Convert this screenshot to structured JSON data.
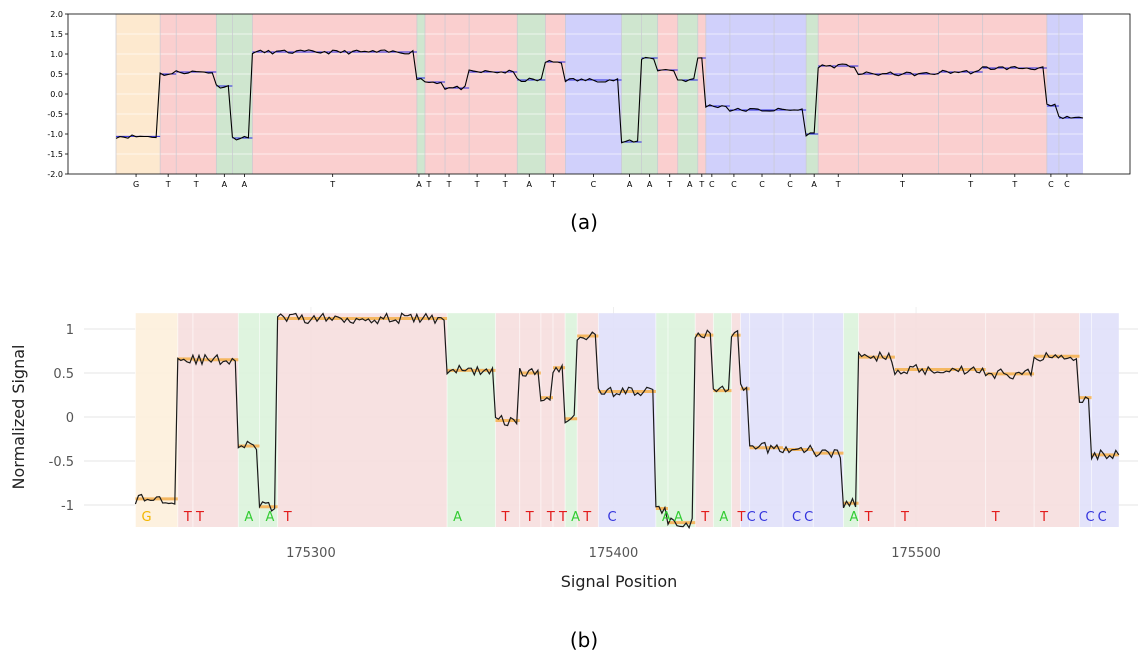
{
  "figure": {
    "caption_a": "(a)",
    "caption_b": "(b)"
  },
  "chart_data": [
    {
      "type": "line",
      "panel": "a",
      "ylim": [
        -2.0,
        2.0
      ],
      "ytick_labels": [
        "2.0",
        "1.5",
        "1.0",
        "0.5",
        "0.0",
        "-0.5",
        "-1.0",
        "-1.5",
        "-2.0"
      ],
      "grid": true,
      "base_colors": {
        "A": "#cfe6cf",
        "C": "#d0d0fb",
        "G": "#fde9cf",
        "T": "#facfcf"
      },
      "x_range": [
        0,
        241
      ],
      "segments": [
        {
          "base": "G",
          "start": 0,
          "end": 11,
          "level": -1.06
        },
        {
          "base": "T",
          "start": 11,
          "end": 15,
          "level": 0.5
        },
        {
          "base": "T",
          "start": 15,
          "end": 25,
          "level": 0.55
        },
        {
          "base": "A",
          "start": 25,
          "end": 29,
          "level": 0.2
        },
        {
          "base": "A",
          "start": 29,
          "end": 34,
          "level": -1.1
        },
        {
          "base": "T",
          "start": 34,
          "end": 75,
          "level": 1.05
        },
        {
          "base": "A",
          "start": 75,
          "end": 77,
          "level": 0.4
        },
        {
          "base": "T",
          "start": 77,
          "end": 82,
          "level": 0.3
        },
        {
          "base": "T",
          "start": 82,
          "end": 88,
          "level": 0.15
        },
        {
          "base": "T",
          "start": 88,
          "end": 100,
          "level": 0.55
        },
        {
          "base": "A",
          "start": 100,
          "end": 107,
          "level": 0.35
        },
        {
          "base": "T",
          "start": 107,
          "end": 112,
          "level": 0.8
        },
        {
          "base": "C",
          "start": 112,
          "end": 126,
          "level": 0.35
        },
        {
          "base": "A",
          "start": 126,
          "end": 131,
          "level": -1.2
        },
        {
          "base": "A",
          "start": 131,
          "end": 135,
          "level": 0.9
        },
        {
          "base": "T",
          "start": 135,
          "end": 140,
          "level": 0.6
        },
        {
          "base": "A",
          "start": 140,
          "end": 145,
          "level": 0.35
        },
        {
          "base": "T",
          "start": 145,
          "end": 147,
          "level": 0.9
        },
        {
          "base": "C",
          "start": 147,
          "end": 153,
          "level": -0.3
        },
        {
          "base": "C",
          "start": 153,
          "end": 164,
          "level": -0.4
        },
        {
          "base": "C",
          "start": 164,
          "end": 172,
          "level": -0.4
        },
        {
          "base": "A",
          "start": 172,
          "end": 175,
          "level": -1.0
        },
        {
          "base": "T",
          "start": 175,
          "end": 185,
          "level": 0.7
        },
        {
          "base": "T",
          "start": 185,
          "end": 205,
          "level": 0.5
        },
        {
          "base": "T",
          "start": 205,
          "end": 216,
          "level": 0.55
        },
        {
          "base": "T",
          "start": 216,
          "end": 232,
          "level": 0.65
        },
        {
          "base": "C",
          "start": 232,
          "end": 235,
          "level": -0.3
        },
        {
          "base": "C",
          "start": 235,
          "end": 241,
          "level": -0.6
        }
      ],
      "x_tick_labels": [
        {
          "x": 5,
          "text": "G"
        },
        {
          "x": 13,
          "text": "T"
        },
        {
          "x": 20,
          "text": "T"
        },
        {
          "x": 27,
          "text": "A"
        },
        {
          "x": 32,
          "text": "A"
        },
        {
          "x": 54,
          "text": "T"
        },
        {
          "x": 75.5,
          "text": "A"
        },
        {
          "x": 78,
          "text": "T"
        },
        {
          "x": 83,
          "text": "T"
        },
        {
          "x": 90,
          "text": "T"
        },
        {
          "x": 97,
          "text": "T"
        },
        {
          "x": 103,
          "text": "A"
        },
        {
          "x": 109,
          "text": "T"
        },
        {
          "x": 119,
          "text": "C"
        },
        {
          "x": 128,
          "text": "A"
        },
        {
          "x": 133,
          "text": "A"
        },
        {
          "x": 138,
          "text": "T"
        },
        {
          "x": 143,
          "text": "A"
        },
        {
          "x": 146,
          "text": "T"
        },
        {
          "x": 148.5,
          "text": "C"
        },
        {
          "x": 154,
          "text": "C"
        },
        {
          "x": 161,
          "text": "C"
        },
        {
          "x": 168,
          "text": "C"
        },
        {
          "x": 174,
          "text": "A"
        },
        {
          "x": 180,
          "text": "T"
        },
        {
          "x": 196,
          "text": "T"
        },
        {
          "x": 213,
          "text": "T"
        },
        {
          "x": 224,
          "text": "T"
        },
        {
          "x": 233,
          "text": "C"
        },
        {
          "x": 237,
          "text": "C"
        }
      ]
    },
    {
      "type": "line",
      "panel": "b",
      "xlabel": "Signal Position",
      "ylabel": "Normalized Signal",
      "xlim": [
        175225,
        175575
      ],
      "ylim": [
        -1.25,
        1.25
      ],
      "xticks": [
        175300,
        175400,
        175500
      ],
      "xtick_labels": [
        "175300",
        "175400",
        "175500"
      ],
      "yticks": [
        1,
        0.5,
        0,
        -0.5,
        -1
      ],
      "ytick_labels": [
        "1",
        "0.5",
        "0",
        "-0.5",
        "-1"
      ],
      "grid": true,
      "base_colors": {
        "A": "#dcf3dc",
        "C": "#e0e0fa",
        "G": "#fdf0dc",
        "T": "#f6dede"
      },
      "base_text_colors": {
        "A": "#33cc33",
        "C": "#3333dd",
        "G": "#f2b600",
        "T": "#e21b1b"
      },
      "segments": [
        {
          "base": "G",
          "start": 175242,
          "end": 175256,
          "level": -0.93
        },
        {
          "base": "T",
          "start": 175256,
          "end": 175261,
          "level": 0.66
        },
        {
          "base": "T",
          "start": 175261,
          "end": 175276,
          "level": 0.65
        },
        {
          "base": "A",
          "start": 175276,
          "end": 175283,
          "level": -0.33
        },
        {
          "base": "A",
          "start": 175283,
          "end": 175289,
          "level": -1.02
        },
        {
          "base": "T",
          "start": 175289,
          "end": 175345,
          "level": 1.12
        },
        {
          "base": "A",
          "start": 175345,
          "end": 175361,
          "level": 0.53
        },
        {
          "base": "T",
          "start": 175361,
          "end": 175369,
          "level": -0.04
        },
        {
          "base": "T",
          "start": 175369,
          "end": 175376,
          "level": 0.5
        },
        {
          "base": "T",
          "start": 175376,
          "end": 175380,
          "level": 0.22
        },
        {
          "base": "T",
          "start": 175380,
          "end": 175384,
          "level": 0.56
        },
        {
          "base": "A",
          "start": 175384,
          "end": 175388,
          "level": -0.02
        },
        {
          "base": "T",
          "start": 175388,
          "end": 175395,
          "level": 0.92
        },
        {
          "base": "C",
          "start": 175395,
          "end": 175414,
          "level": 0.29
        },
        {
          "base": "A",
          "start": 175414,
          "end": 175418,
          "level": -1.04
        },
        {
          "base": "A",
          "start": 175418,
          "end": 175427,
          "level": -1.2
        },
        {
          "base": "T",
          "start": 175427,
          "end": 175433,
          "level": 0.93
        },
        {
          "base": "A",
          "start": 175433,
          "end": 175439,
          "level": 0.3
        },
        {
          "base": "T",
          "start": 175439,
          "end": 175442,
          "level": 0.93
        },
        {
          "base": "C",
          "start": 175442,
          "end": 175445,
          "level": 0.32
        },
        {
          "base": "C",
          "start": 175445,
          "end": 175456,
          "level": -0.35
        },
        {
          "base": "C",
          "start": 175456,
          "end": 175466,
          "level": -0.37
        },
        {
          "base": "C",
          "start": 175466,
          "end": 175476,
          "level": -0.41
        },
        {
          "base": "A",
          "start": 175476,
          "end": 175481,
          "level": -0.98
        },
        {
          "base": "T",
          "start": 175481,
          "end": 175493,
          "level": 0.68
        },
        {
          "base": "T",
          "start": 175493,
          "end": 175523,
          "level": 0.54
        },
        {
          "base": "T",
          "start": 175523,
          "end": 175539,
          "level": 0.49
        },
        {
          "base": "T",
          "start": 175539,
          "end": 175554,
          "level": 0.69
        },
        {
          "base": "C",
          "start": 175554,
          "end": 175558,
          "level": 0.22
        },
        {
          "base": "C",
          "start": 175558,
          "end": 175567,
          "level": -0.43
        }
      ],
      "base_labels": [
        {
          "x": 175244,
          "text": "G"
        },
        {
          "x": 175258,
          "text": "T"
        },
        {
          "x": 175262,
          "text": "T"
        },
        {
          "x": 175278,
          "text": "A"
        },
        {
          "x": 175285,
          "text": "A"
        },
        {
          "x": 175291,
          "text": "T"
        },
        {
          "x": 175347,
          "text": "A"
        },
        {
          "x": 175363,
          "text": "T"
        },
        {
          "x": 175371,
          "text": "T"
        },
        {
          "x": 175378,
          "text": "T"
        },
        {
          "x": 175382,
          "text": "T"
        },
        {
          "x": 175386,
          "text": "A"
        },
        {
          "x": 175390,
          "text": "T"
        },
        {
          "x": 175398,
          "text": "C"
        },
        {
          "x": 175416,
          "text": "A"
        },
        {
          "x": 175420,
          "text": "A"
        },
        {
          "x": 175429,
          "text": "T"
        },
        {
          "x": 175435,
          "text": "A"
        },
        {
          "x": 175441,
          "text": "T"
        },
        {
          "x": 175444,
          "text": "C"
        },
        {
          "x": 175448,
          "text": "C"
        },
        {
          "x": 175459,
          "text": "C"
        },
        {
          "x": 175463,
          "text": "C"
        },
        {
          "x": 175478,
          "text": "A"
        },
        {
          "x": 175483,
          "text": "T"
        },
        {
          "x": 175495,
          "text": "T"
        },
        {
          "x": 175525,
          "text": "T"
        },
        {
          "x": 175541,
          "text": "T"
        },
        {
          "x": 175556,
          "text": "C"
        },
        {
          "x": 175560,
          "text": "C"
        }
      ]
    }
  ]
}
